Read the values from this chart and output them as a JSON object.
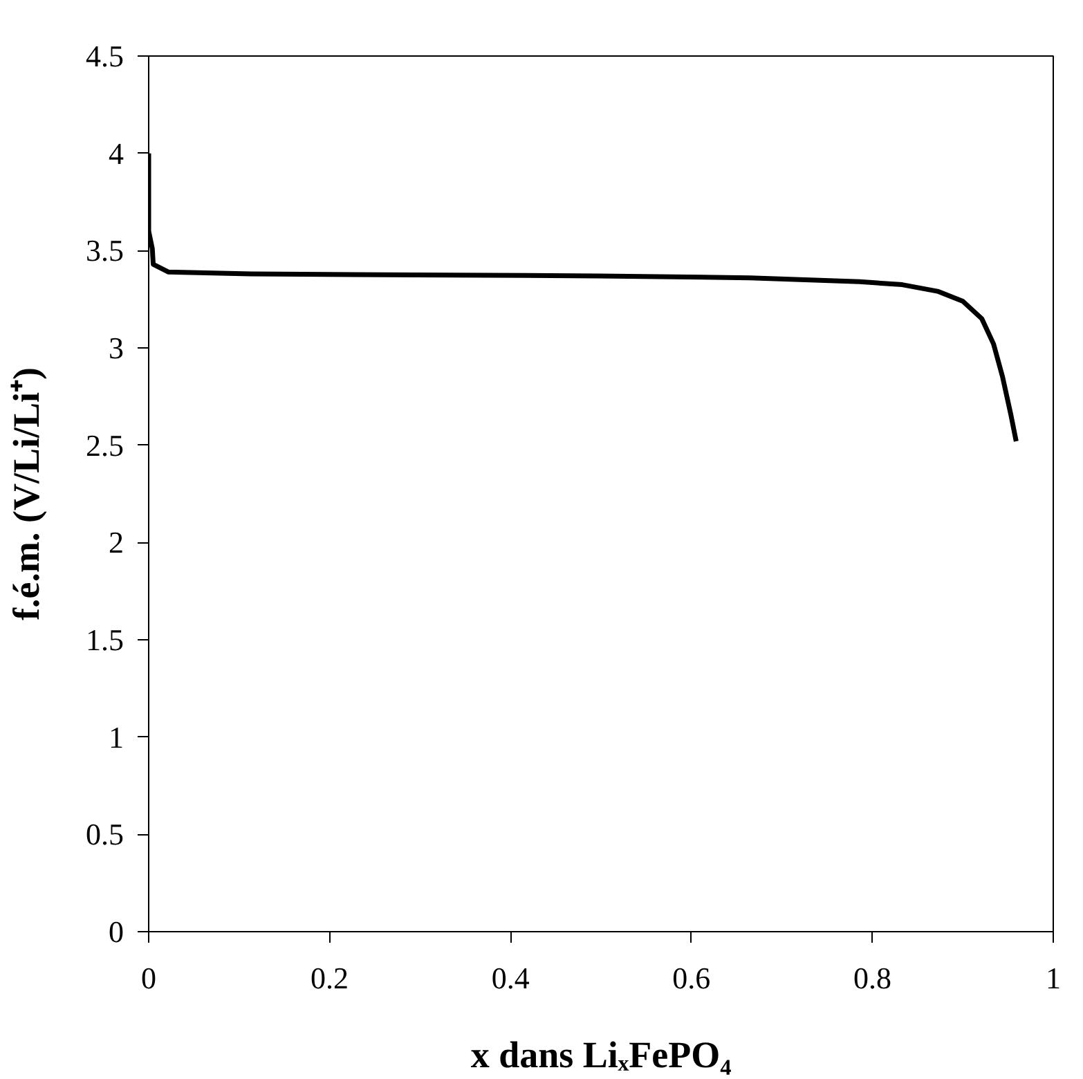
{
  "chart_data": {
    "type": "line",
    "xlabel": "x dans LiₓFePO₄",
    "ylabel": "f.é.m. (V/Li/Li⁺)",
    "series": [
      {
        "color": "#000000",
        "x": [
          0,
          0,
          0.004,
          0.005,
          0.022,
          0.113,
          0.295,
          0.497,
          0.665,
          0.786,
          0.833,
          0.873,
          0.9,
          0.921,
          0.934,
          0.944,
          0.953,
          0.959
        ],
        "values": [
          4.0,
          3.6,
          3.51,
          3.43,
          3.39,
          3.38,
          3.375,
          3.37,
          3.36,
          3.34,
          3.325,
          3.29,
          3.24,
          3.15,
          3.02,
          2.85,
          2.66,
          2.52
        ]
      }
    ],
    "xlim": [
      0,
      1
    ],
    "ylim": [
      0,
      4.5
    ],
    "xticks": [
      0,
      {
        "value": 0.2,
        "label": "0.2"
      },
      {
        "value": 0.4,
        "label": "0.4"
      },
      {
        "value": 0.6,
        "label": "0.6"
      },
      {
        "value": 0.8,
        "label": "0.8"
      },
      1
    ],
    "yticks": [
      0,
      0.5,
      1,
      1.5,
      2,
      2.5,
      3,
      3.5,
      4,
      4.5
    ],
    "grid": false,
    "marker": "none",
    "line_style": "solid"
  }
}
